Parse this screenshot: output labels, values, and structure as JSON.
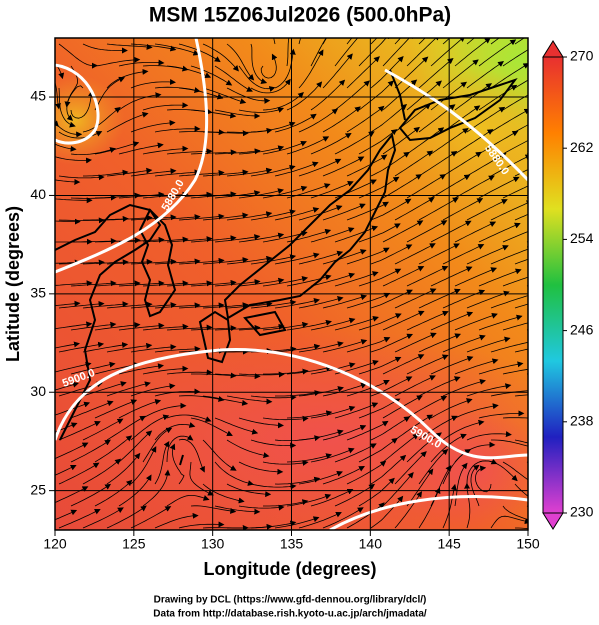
{
  "chart_data": {
    "type": "map",
    "title": "MSM 15Z06Jul2026 (500.0hPa)",
    "xlabel": "Longitude (degrees)",
    "ylabel": "Latitude  (degrees)",
    "xlim": [
      120,
      150
    ],
    "ylim": [
      23,
      48
    ],
    "xticks": [
      120,
      125,
      130,
      135,
      140,
      145,
      150
    ],
    "yticks": [
      25,
      30,
      35,
      40,
      45
    ],
    "grid": true,
    "colorbar": {
      "lim": [
        230,
        270
      ],
      "ticks": [
        230,
        238,
        246,
        254,
        262,
        270
      ],
      "colors": [
        "#e040d0",
        "#2020c0",
        "#20c8e0",
        "#20c040",
        "#e0e020",
        "#ff8000",
        "#e83030"
      ]
    },
    "contour_labels": [
      {
        "text": "5880.0",
        "x": 127.5,
        "y": 40.0,
        "angle": -60
      },
      {
        "text": "5880.0",
        "x": 148.0,
        "y": 41.8,
        "angle": 55
      },
      {
        "text": "5900.0",
        "x": 121.5,
        "y": 30.7,
        "angle": -20
      },
      {
        "text": "5900.0",
        "x": 143.5,
        "y": 27.7,
        "angle": 30
      }
    ],
    "credits": [
      "Drawing by DCL (https://www.gfd-dennou.org/library/dcl/)",
      "Data from http://database.rish.kyoto-u.ac.jp/arch/jmadata/"
    ]
  }
}
